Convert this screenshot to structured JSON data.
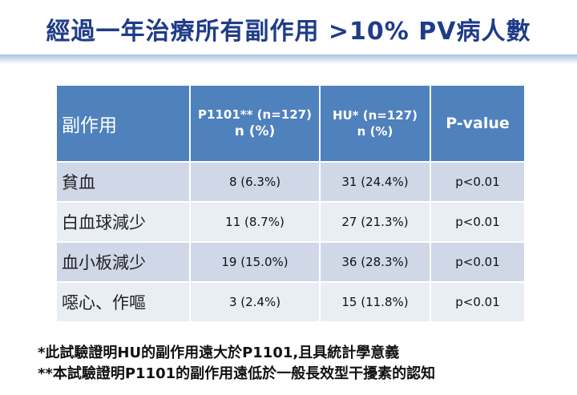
{
  "title": "經過一年治療所有副作用 >10% PV病人數",
  "table": {
    "header": {
      "col0": "副作用",
      "col1_line1": "P1101** (n=127)",
      "col1_line2": "n (%)",
      "col2_line1": "HU* (n=127)",
      "col2_line2": "n (%)",
      "col3": "P-value"
    },
    "rows": [
      {
        "effect": "貧血",
        "p1101": "8 (6.3%)",
        "hu": "31 (24.4%)",
        "p": "p<0.01"
      },
      {
        "effect": "白血球減少",
        "p1101": "11 (8.7%)",
        "hu": "27 (21.3%)",
        "p": "p<0.01"
      },
      {
        "effect": "血小板減少",
        "p1101": "19 (15.0%)",
        "hu": "36 (28.3%)",
        "p": "p<0.01"
      },
      {
        "effect": "噁心、作嘔",
        "p1101": "3 (2.4%)",
        "hu": "15 (11.8%)",
        "p": "p<0.01"
      }
    ]
  },
  "notes": [
    "*此試驗證明HU的副作用遠大於P1101,且具統計學意義",
    "**本試驗證明P1101的副作用遠低於一般長效型干擾素的認知"
  ],
  "colors": {
    "title": "#1f3c88",
    "header_bg": "#4f81bd",
    "row_band_dark": "#d0d8e8",
    "row_band_light": "#e9edf4"
  }
}
